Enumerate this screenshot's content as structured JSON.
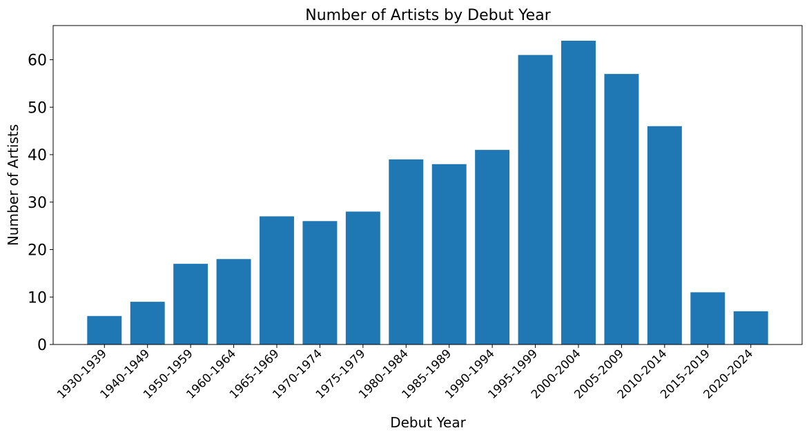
{
  "chart_data": {
    "type": "bar",
    "title": "Number of Artists by Debut Year",
    "x_label": "Debut Year",
    "y_label": "Number of Artists",
    "categories": [
      "1930-1939",
      "1940-1949",
      "1950-1959",
      "1960-1964",
      "1965-1969",
      "1970-1974",
      "1975-1979",
      "1980-1984",
      "1985-1989",
      "1990-1994",
      "1995-1999",
      "2000-2004",
      "2005-2009",
      "2010-2014",
      "2015-2019",
      "2020-2024"
    ],
    "values": [
      6,
      9,
      17,
      18,
      27,
      26,
      28,
      39,
      38,
      41,
      61,
      64,
      57,
      46,
      11,
      7
    ],
    "color": "#1f77b4",
    "ylim": [
      0,
      67.2
    ],
    "yticks": [
      0,
      10,
      20,
      30,
      40,
      50,
      60
    ],
    "grid": false
  }
}
